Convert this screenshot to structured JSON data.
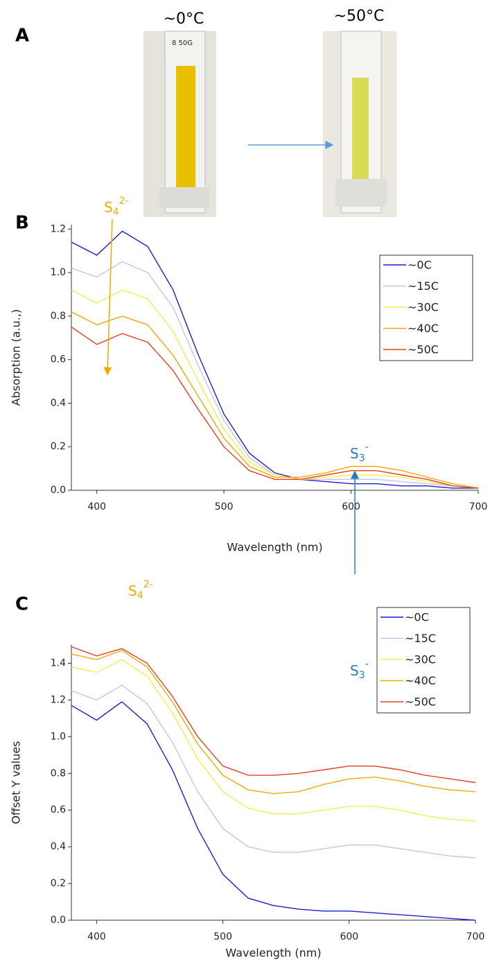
{
  "panel_a": {
    "label": "A",
    "photos": [
      {
        "caption": "~0°C",
        "tag": "8 50G"
      },
      {
        "caption": "~50°C"
      }
    ]
  },
  "chart_data": [
    {
      "type": "line",
      "panel_label": "B",
      "x_label": "Wavelength (nm)",
      "y_label": "Absorption (a.u.,)",
      "x": [
        380,
        400,
        420,
        440,
        460,
        480,
        500,
        520,
        540,
        560,
        580,
        600,
        620,
        640,
        660,
        680,
        700
      ],
      "series": [
        {
          "name": "~0C",
          "color": "#1c1cd8",
          "values": [
            1.14,
            1.08,
            1.19,
            1.12,
            0.92,
            0.62,
            0.35,
            0.17,
            0.08,
            0.05,
            0.04,
            0.03,
            0.03,
            0.02,
            0.02,
            0.01,
            0.01
          ]
        },
        {
          "name": "~15C",
          "color": "#c4c4ee",
          "values": [
            1.02,
            0.98,
            1.05,
            1.0,
            0.84,
            0.57,
            0.32,
            0.15,
            0.07,
            0.05,
            0.05,
            0.05,
            0.05,
            0.04,
            0.03,
            0.02,
            0.01
          ]
        },
        {
          "name": "~30C",
          "color": "#f4ee50",
          "values": [
            0.92,
            0.86,
            0.92,
            0.88,
            0.73,
            0.5,
            0.28,
            0.13,
            0.07,
            0.05,
            0.06,
            0.07,
            0.07,
            0.06,
            0.04,
            0.02,
            0.01
          ]
        },
        {
          "name": "~40C",
          "color": "#f5a800",
          "values": [
            0.82,
            0.76,
            0.8,
            0.76,
            0.62,
            0.43,
            0.24,
            0.11,
            0.06,
            0.06,
            0.08,
            0.11,
            0.11,
            0.09,
            0.06,
            0.03,
            0.01
          ]
        },
        {
          "name": "~50C",
          "color": "#e8401c",
          "values": [
            0.75,
            0.67,
            0.72,
            0.68,
            0.55,
            0.37,
            0.2,
            0.09,
            0.05,
            0.05,
            0.07,
            0.09,
            0.09,
            0.07,
            0.05,
            0.02,
            0.01
          ]
        }
      ],
      "xlim": [
        380,
        700
      ],
      "xticks": [
        400,
        500,
        600,
        700
      ],
      "ylim": [
        0,
        1.22
      ],
      "yticks": [
        {
          "value": 0,
          "label": "0.0"
        },
        0.2,
        0.4,
        0.6,
        0.8,
        {
          "value": 1,
          "label": "1.0"
        },
        1.2
      ],
      "legend": "upper right",
      "annotations": [
        {
          "text": "S",
          "sub": "4",
          "sup": "2-",
          "color": "#f5a800"
        },
        {
          "text": "S",
          "sub": "3",
          "sup": "-",
          "color": "#2a7cc0"
        }
      ]
    },
    {
      "type": "line",
      "panel_label": "C",
      "x_label": "Wavelength (nm)",
      "y_label": "Offset Y values",
      "x": [
        380,
        400,
        420,
        440,
        460,
        480,
        500,
        520,
        540,
        560,
        580,
        600,
        620,
        640,
        660,
        680,
        700
      ],
      "series": [
        {
          "name": "~0C",
          "color": "#1c1cd8",
          "values": [
            1.17,
            1.09,
            1.19,
            1.07,
            0.82,
            0.5,
            0.25,
            0.12,
            0.08,
            0.06,
            0.05,
            0.05,
            0.04,
            0.03,
            0.02,
            0.01,
            0.0
          ]
        },
        {
          "name": "~15C",
          "color": "#c4c4ee",
          "values": [
            1.25,
            1.2,
            1.28,
            1.18,
            0.97,
            0.7,
            0.5,
            0.4,
            0.37,
            0.37,
            0.39,
            0.41,
            0.41,
            0.39,
            0.37,
            0.35,
            0.34
          ]
        },
        {
          "name": "~30C",
          "color": "#f4ee50",
          "values": [
            1.38,
            1.35,
            1.42,
            1.33,
            1.13,
            0.88,
            0.7,
            0.61,
            0.58,
            0.58,
            0.6,
            0.62,
            0.62,
            0.6,
            0.57,
            0.55,
            0.54
          ]
        },
        {
          "name": "~40C",
          "color": "#f5a800",
          "values": [
            1.45,
            1.42,
            1.47,
            1.38,
            1.19,
            0.96,
            0.79,
            0.71,
            0.69,
            0.7,
            0.74,
            0.77,
            0.78,
            0.76,
            0.73,
            0.71,
            0.7
          ]
        },
        {
          "name": "~50C",
          "color": "#e8401c",
          "values": [
            1.49,
            1.44,
            1.48,
            1.4,
            1.22,
            1.0,
            0.84,
            0.79,
            0.79,
            0.8,
            0.82,
            0.84,
            0.84,
            0.82,
            0.79,
            0.77,
            0.75
          ]
        }
      ],
      "xlim": [
        380,
        700
      ],
      "xticks": [
        400,
        500,
        600,
        700
      ],
      "ylim": [
        0,
        1.5
      ],
      "yticks": [
        {
          "value": 0,
          "label": "0.0"
        },
        0.2,
        0.4,
        0.6,
        0.8,
        {
          "value": 1,
          "label": "1.0"
        },
        1.2,
        1.4
      ],
      "legend": "upper right",
      "annotations": [
        {
          "text": "S",
          "sub": "4",
          "sup": "2-",
          "color": "#f5a800"
        },
        {
          "text": "S",
          "sub": "3",
          "sup": "-",
          "color": "#2a7cc0"
        }
      ]
    }
  ]
}
